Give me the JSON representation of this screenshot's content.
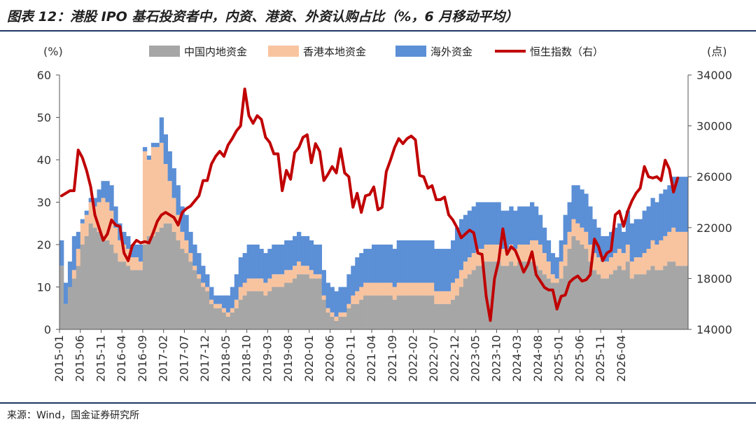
{
  "title": "图表 12：港股 IPO 基石投资者中，内资、港资、外资认购占比（%，6 月移动平均）",
  "source": "来源：Wind，国金证券研究所",
  "colors": {
    "domestic": "#a6a6a6",
    "hongkong": "#f8c4a0",
    "overseas": "#5b8fd6",
    "index_line": "#c00000",
    "rule": "#1f3864"
  },
  "chart_data": {
    "type": "area",
    "left_unit": "(%)",
    "right_unit": "(点)",
    "left_ylim": [
      0,
      60
    ],
    "left_ticks": [
      0,
      10,
      20,
      30,
      40,
      50,
      60
    ],
    "right_ylim": [
      14000,
      34000
    ],
    "right_ticks": [
      14000,
      18000,
      22000,
      26000,
      30000,
      34000
    ],
    "x_tick_labels": [
      "2015-01",
      "2015-06",
      "2015-11",
      "2016-04",
      "2016-09",
      "2017-02",
      "2017-07",
      "2017-12",
      "2018-05",
      "2018-10",
      "2019-03",
      "2019-08",
      "2020-01",
      "2020-06",
      "2020-11",
      "2021-04",
      "2021-09",
      "2022-02",
      "2022-07",
      "2022-12",
      "2023-05",
      "2023-10",
      "2024-03",
      "2024-08",
      "2025-01",
      "2025-06",
      "2025-11",
      "2026-04"
    ],
    "start_month": "2015-01",
    "legend": [
      "中国内地资金",
      "香港本地资金",
      "海外资金",
      "恒生指数（右）"
    ],
    "series": [
      {
        "name": "中国内地资金",
        "type": "stacked_bar",
        "values": [
          15,
          6,
          10,
          12,
          15,
          20,
          22,
          25,
          24,
          23,
          22,
          21,
          20,
          18,
          16,
          16,
          15,
          14,
          14,
          14,
          20,
          22,
          22,
          23,
          24,
          25,
          25,
          23,
          21,
          19,
          18,
          16,
          14,
          12,
          10,
          9,
          6,
          5,
          5,
          4,
          3,
          4,
          5,
          7,
          8,
          9,
          9,
          9,
          9,
          8,
          9,
          10,
          10,
          10,
          11,
          11,
          12,
          13,
          13,
          13,
          12,
          12,
          12,
          7,
          4,
          3,
          2,
          3,
          3,
          5,
          6,
          6,
          7,
          8,
          8,
          8,
          8,
          8,
          8,
          8,
          7,
          8,
          8,
          8,
          8,
          8,
          8,
          8,
          8,
          8,
          6,
          6,
          6,
          6,
          7,
          8,
          10,
          12,
          13,
          14,
          15,
          15,
          16,
          16,
          16,
          16,
          15,
          15,
          16,
          15,
          16,
          16,
          16,
          16,
          15,
          14,
          13,
          12,
          11,
          11,
          12,
          15,
          19,
          22,
          21,
          20,
          19,
          16,
          14,
          13,
          12,
          12,
          13,
          14,
          15,
          14,
          16,
          12,
          13,
          13,
          13,
          14,
          15,
          14,
          14,
          15,
          16,
          16,
          15,
          15,
          15
        ]
      },
      {
        "name": "香港本地资金",
        "type": "stacked_bar",
        "values": [
          0,
          0,
          0,
          2,
          4,
          5,
          5,
          5,
          5,
          7,
          9,
          9,
          8,
          6,
          5,
          4,
          4,
          3,
          3,
          2,
          22,
          18,
          21,
          20,
          20,
          14,
          10,
          8,
          6,
          4,
          3,
          2,
          1,
          1,
          1,
          1,
          1,
          1,
          1,
          1,
          1,
          1,
          2,
          3,
          3,
          3,
          3,
          3,
          3,
          3,
          3,
          3,
          3,
          3,
          3,
          3,
          3,
          3,
          2,
          2,
          2,
          1,
          1,
          1,
          1,
          1,
          1,
          1,
          1,
          1,
          2,
          3,
          3,
          3,
          3,
          3,
          3,
          3,
          3,
          3,
          3,
          3,
          3,
          3,
          3,
          3,
          3,
          3,
          3,
          3,
          3,
          3,
          3,
          3,
          4,
          4,
          4,
          4,
          4,
          4,
          4,
          4,
          4,
          4,
          4,
          4,
          4,
          4,
          4,
          4,
          4,
          4,
          4,
          5,
          6,
          6,
          5,
          4,
          2,
          1,
          4,
          5,
          4,
          4,
          4,
          4,
          4,
          4,
          4,
          4,
          4,
          4,
          4,
          4,
          4,
          4,
          4,
          4,
          4,
          4,
          5,
          5,
          6,
          6,
          7,
          7,
          7,
          8,
          8,
          8,
          8
        ]
      },
      {
        "name": "海外资金",
        "type": "stacked_bar",
        "values": [
          6,
          5,
          6,
          8,
          4,
          1,
          1,
          1,
          2,
          3,
          4,
          5,
          6,
          5,
          4,
          3,
          3,
          3,
          3,
          4,
          1,
          1,
          1,
          1,
          6,
          7,
          7,
          7,
          7,
          6,
          6,
          5,
          5,
          5,
          4,
          3,
          3,
          2,
          2,
          3,
          4,
          5,
          6,
          7,
          7,
          8,
          8,
          8,
          7,
          7,
          7,
          7,
          7,
          7,
          7,
          7,
          7,
          7,
          7,
          7,
          7,
          7,
          7,
          6,
          6,
          6,
          6,
          6,
          6,
          7,
          7,
          8,
          8,
          8,
          8,
          9,
          9,
          9,
          9,
          9,
          9,
          10,
          10,
          10,
          10,
          10,
          10,
          10,
          10,
          10,
          10,
          10,
          10,
          10,
          10,
          12,
          12,
          11,
          11,
          11,
          11,
          11,
          10,
          10,
          10,
          10,
          9,
          9,
          9,
          9,
          9,
          9,
          9,
          9,
          8,
          7,
          6,
          5,
          5,
          5,
          5,
          7,
          7,
          8,
          9,
          9,
          9,
          9,
          8,
          7,
          6,
          6,
          6,
          6,
          6,
          5,
          8,
          9,
          9,
          9,
          10,
          10,
          10,
          10,
          11,
          11,
          11,
          12,
          13,
          13,
          13
        ]
      },
      {
        "name": "恒生指数（右）",
        "type": "line",
        "axis": "right",
        "values": [
          24500,
          24700,
          24900,
          24900,
          28100,
          27500,
          26500,
          25200,
          23000,
          22000,
          21000,
          21500,
          22600,
          22200,
          22100,
          20000,
          19400,
          20600,
          21000,
          20800,
          20900,
          20800,
          21600,
          22500,
          23000,
          23200,
          23000,
          22800,
          22200,
          23200,
          23500,
          23700,
          24100,
          24500,
          25700,
          25700,
          27000,
          27600,
          28000,
          27600,
          28500,
          29000,
          29600,
          30000,
          32900,
          30800,
          30200,
          30800,
          30500,
          29100,
          28700,
          27800,
          27800,
          24900,
          26500,
          25800,
          27900,
          28300,
          29100,
          29300,
          27100,
          28600,
          28000,
          25700,
          26200,
          26800,
          26300,
          28200,
          26300,
          26000,
          23600,
          24700,
          23200,
          24500,
          24600,
          25200,
          23400,
          23600,
          26400,
          27300,
          28300,
          29000,
          28600,
          29000,
          29200,
          28900,
          26100,
          26000,
          25100,
          25300,
          24200,
          24200,
          24400,
          23000,
          22600,
          22000,
          21200,
          21500,
          21800,
          21600,
          20000,
          19900,
          16600,
          14700,
          18000,
          19400,
          21900,
          19900,
          20500,
          20200,
          19400,
          18500,
          19100,
          20100,
          18300,
          17800,
          17300,
          17100,
          17100,
          15600,
          16600,
          16700,
          17700,
          18000,
          18200,
          17800,
          17900,
          18300,
          21100,
          20500,
          19400,
          20000,
          20200,
          23000,
          23300,
          22100,
          23300,
          24100,
          24700,
          25100,
          26800,
          26000,
          25900,
          26000,
          25700,
          27300,
          26600,
          24800,
          25900
        ]
      }
    ]
  }
}
